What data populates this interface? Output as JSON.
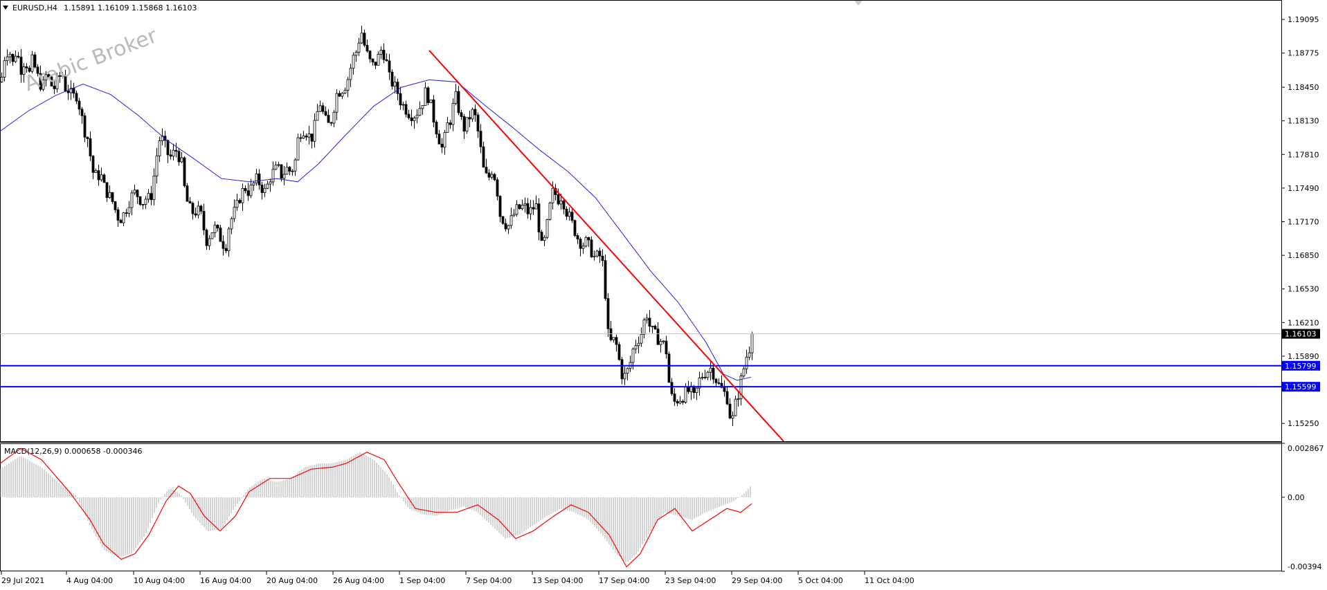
{
  "header": {
    "symbol": "EURUSD,H4",
    "ohlc": "1.15891 1.16109 1.15868 1.16103",
    "watermark": "Arabic Broker"
  },
  "colors": {
    "background": "#ffffff",
    "candles": "#000000",
    "moving_average": "#2020e0",
    "trendline": "#ff0000",
    "level_lines": "#0000ff",
    "price_tag_current_bg": "#000000",
    "price_tag_level_bg": "#0000ff",
    "macd_histogram": "#a8a8a8",
    "macd_signal": "#ff0000"
  },
  "chart_data": [
    {
      "type": "candlestick",
      "title": "EURUSD,H4",
      "ylim": [
        1.1508,
        1.1928
      ],
      "y_ticks": [
        "1.19095",
        "1.18775",
        "1.18450",
        "1.18130",
        "1.17810",
        "1.17490",
        "1.17170",
        "1.16850",
        "1.16530",
        "1.16210",
        "1.15890",
        "1.15250"
      ],
      "x_ticks": [
        "29 Jul 2021",
        "4 Aug 04:00",
        "10 Aug 04:00",
        "16 Aug 04:00",
        "20 Aug 04:00",
        "26 Aug 04:00",
        "1 Sep 04:00",
        "7 Sep 04:00",
        "13 Sep 04:00",
        "17 Sep 04:00",
        "23 Sep 04:00",
        "29 Sep 04:00",
        "5 Oct 04:00",
        "11 Oct 04:00"
      ],
      "close_path": [
        [
          0,
          1.185
        ],
        [
          6,
          1.1878
        ],
        [
          12,
          1.188
        ],
        [
          18,
          1.1865
        ],
        [
          22,
          1.1882
        ],
        [
          26,
          1.187
        ],
        [
          30,
          1.186
        ],
        [
          35,
          1.1875
        ],
        [
          40,
          1.1855
        ],
        [
          45,
          1.187
        ],
        [
          50,
          1.1862
        ],
        [
          55,
          1.185
        ],
        [
          60,
          1.1845
        ],
        [
          66,
          1.1858
        ],
        [
          72,
          1.1848
        ],
        [
          76,
          1.1843
        ],
        [
          82,
          1.1852
        ],
        [
          88,
          1.186
        ],
        [
          92,
          1.1845
        ],
        [
          98,
          1.1842
        ],
        [
          104,
          1.1835
        ],
        [
          108,
          1.184
        ],
        [
          114,
          1.1825
        ],
        [
          120,
          1.1805
        ],
        [
          126,
          1.1795
        ],
        [
          132,
          1.1765
        ],
        [
          138,
          1.176
        ],
        [
          144,
          1.1762
        ],
        [
          150,
          1.1748
        ],
        [
          156,
          1.1742
        ],
        [
          162,
          1.1735
        ],
        [
          168,
          1.1722
        ],
        [
          174,
          1.172
        ],
        [
          180,
          1.1728
        ],
        [
          186,
          1.1738
        ],
        [
          192,
          1.1745
        ],
        [
          198,
          1.1742
        ],
        [
          204,
          1.1735
        ],
        [
          210,
          1.174
        ],
        [
          216,
          1.1738
        ],
        [
          222,
          1.1765
        ],
        [
          228,
          1.1795
        ],
        [
          234,
          1.1795
        ],
        [
          240,
          1.1782
        ],
        [
          246,
          1.1778
        ],
        [
          252,
          1.1786
        ],
        [
          258,
          1.1778
        ],
        [
          262,
          1.177
        ],
        [
          266,
          1.1742
        ],
        [
          272,
          1.173
        ],
        [
          278,
          1.1725
        ],
        [
          284,
          1.1728
        ],
        [
          290,
          1.1722
        ],
        [
          296,
          1.1698
        ],
        [
          302,
          1.1705
        ],
        [
          308,
          1.1712
        ],
        [
          314,
          1.1705
        ],
        [
          320,
          1.1698
        ],
        [
          324,
          1.169
        ],
        [
          328,
          1.171
        ],
        [
          334,
          1.1722
        ],
        [
          340,
          1.173
        ],
        [
          346,
          1.1742
        ],
        [
          352,
          1.175
        ],
        [
          358,
          1.1745
        ],
        [
          364,
          1.1752
        ],
        [
          370,
          1.1758
        ],
        [
          376,
          1.175
        ],
        [
          382,
          1.1745
        ],
        [
          388,
          1.1758
        ],
        [
          394,
          1.1765
        ],
        [
          400,
          1.1768
        ],
        [
          406,
          1.176
        ],
        [
          412,
          1.1768
        ],
        [
          418,
          1.1765
        ],
        [
          424,
          1.177
        ],
        [
          430,
          1.18
        ],
        [
          436,
          1.1805
        ],
        [
          442,
          1.1802
        ],
        [
          448,
          1.1795
        ],
        [
          454,
          1.181
        ],
        [
          460,
          1.1832
        ],
        [
          466,
          1.1818
        ],
        [
          472,
          1.1808
        ],
        [
          478,
          1.1815
        ],
        [
          484,
          1.1838
        ],
        [
          490,
          1.1842
        ],
        [
          496,
          1.1845
        ],
        [
          502,
          1.1855
        ],
        [
          508,
          1.1872
        ],
        [
          514,
          1.188
        ],
        [
          520,
          1.19
        ],
        [
          526,
          1.1882
        ],
        [
          532,
          1.187
        ],
        [
          538,
          1.1865
        ],
        [
          544,
          1.1872
        ],
        [
          550,
          1.1882
        ],
        [
          556,
          1.1872
        ],
        [
          560,
          1.1855
        ],
        [
          566,
          1.1848
        ],
        [
          572,
          1.1842
        ],
        [
          578,
          1.183
        ],
        [
          584,
          1.1825
        ],
        [
          590,
          1.182
        ],
        [
          596,
          1.1818
        ],
        [
          602,
          1.1822
        ],
        [
          608,
          1.183
        ],
        [
          614,
          1.1842
        ],
        [
          620,
          1.183
        ],
        [
          626,
          1.1812
        ],
        [
          632,
          1.1798
        ],
        [
          638,
          1.1785
        ],
        [
          644,
          1.1808
        ],
        [
          650,
          1.1815
        ],
        [
          656,
          1.1838
        ],
        [
          662,
          1.1822
        ],
        [
          668,
          1.1805
        ],
        [
          674,
          1.1812
        ],
        [
          680,
          1.1822
        ],
        [
          686,
          1.1815
        ],
        [
          692,
          1.179
        ],
        [
          698,
          1.1762
        ],
        [
          704,
          1.1758
        ],
        [
          710,
          1.1768
        ],
        [
          716,
          1.1752
        ],
        [
          720,
          1.1725
        ],
        [
          726,
          1.1718
        ],
        [
          732,
          1.1712
        ],
        [
          738,
          1.172
        ],
        [
          744,
          1.1728
        ],
        [
          750,
          1.173
        ],
        [
          756,
          1.1732
        ],
        [
          762,
          1.1725
        ],
        [
          768,
          1.173
        ],
        [
          774,
          1.1732
        ],
        [
          780,
          1.1692
        ],
        [
          786,
          1.17
        ],
        [
          792,
          1.1728
        ],
        [
          798,
          1.1748
        ],
        [
          804,
          1.1738
        ],
        [
          810,
          1.1742
        ],
        [
          816,
          1.1728
        ],
        [
          822,
          1.172
        ],
        [
          828,
          1.171
        ],
        [
          834,
          1.17
        ],
        [
          840,
          1.1695
        ],
        [
          846,
          1.1698
        ],
        [
          852,
          1.169
        ],
        [
          858,
          1.1682
        ],
        [
          864,
          1.1686
        ],
        [
          870,
          1.1675
        ],
        [
          874,
          1.164
        ],
        [
          878,
          1.16
        ],
        [
          884,
          1.1605
        ],
        [
          890,
          1.1598
        ],
        [
          896,
          1.1572
        ],
        [
          902,
          1.157
        ],
        [
          908,
          1.158
        ],
        [
          914,
          1.1598
        ],
        [
          920,
          1.1605
        ],
        [
          926,
          1.1612
        ],
        [
          932,
          1.1632
        ],
        [
          938,
          1.1615
        ],
        [
          944,
          1.161
        ],
        [
          950,
          1.1605
        ],
        [
          956,
          1.1602
        ],
        [
          962,
          1.1592
        ],
        [
          966,
          1.1555
        ],
        [
          972,
          1.1545
        ],
        [
          978,
          1.1548
        ],
        [
          984,
          1.155
        ],
        [
          990,
          1.1555
        ],
        [
          996,
          1.1556
        ],
        [
          1002,
          1.1548
        ],
        [
          1008,
          1.1565
        ],
        [
          1014,
          1.1572
        ],
        [
          1020,
          1.1575
        ],
        [
          1026,
          1.1578
        ],
        [
          1032,
          1.1568
        ],
        [
          1038,
          1.156
        ],
        [
          1044,
          1.1555
        ],
        [
          1050,
          1.1548
        ],
        [
          1054,
          1.1528
        ],
        [
          1058,
          1.153
        ],
        [
          1062,
          1.1548
        ],
        [
          1066,
          1.1555
        ],
        [
          1070,
          1.157
        ],
        [
          1074,
          1.158
        ],
        [
          1078,
          1.1592
        ],
        [
          1082,
          1.1598
        ],
        [
          1086,
          1.16103
        ]
      ],
      "moving_average": [
        [
          0,
          1.1803
        ],
        [
          40,
          1.1822
        ],
        [
          80,
          1.1837
        ],
        [
          120,
          1.1848
        ],
        [
          160,
          1.1838
        ],
        [
          200,
          1.1818
        ],
        [
          240,
          1.1795
        ],
        [
          280,
          1.1777
        ],
        [
          320,
          1.1758
        ],
        [
          360,
          1.1755
        ],
        [
          400,
          1.1758
        ],
        [
          430,
          1.1755
        ],
        [
          460,
          1.1772
        ],
        [
          500,
          1.18
        ],
        [
          540,
          1.1827
        ],
        [
          580,
          1.1845
        ],
        [
          620,
          1.1852
        ],
        [
          660,
          1.185
        ],
        [
          700,
          1.1828
        ],
        [
          740,
          1.1807
        ],
        [
          780,
          1.1785
        ],
        [
          820,
          1.1765
        ],
        [
          860,
          1.174
        ],
        [
          900,
          1.1705
        ],
        [
          940,
          1.167
        ],
        [
          980,
          1.164
        ],
        [
          1020,
          1.1602
        ],
        [
          1045,
          1.1572
        ],
        [
          1065,
          1.1566
        ],
        [
          1085,
          1.1569
        ]
      ],
      "trendline": {
        "from": [
          620,
          1.188
        ],
        "to": [
          1132,
          1.1508
        ]
      },
      "horizontal_levels": [
        1.15799,
        1.15599
      ],
      "current_price": 1.16103,
      "price_tags": [
        "1.16103",
        "1.15799",
        "1.15599"
      ]
    },
    {
      "type": "histogram+line",
      "title": "MACD(12,26,9) 0.000658 -0.000346",
      "ylim": [
        -0.00394,
        0.002867
      ],
      "y_ticks": [
        "0.002867",
        "0.00",
        "-0.00394"
      ],
      "histogram": [
        [
          0,
          0.0015
        ],
        [
          30,
          0.0022
        ],
        [
          60,
          0.0016
        ],
        [
          90,
          0.0006
        ],
        [
          110,
          0.0001
        ],
        [
          130,
          -0.0015
        ],
        [
          150,
          -0.0028
        ],
        [
          170,
          -0.0032
        ],
        [
          190,
          -0.003
        ],
        [
          210,
          -0.002
        ],
        [
          230,
          -0.0002
        ],
        [
          245,
          0.0005
        ],
        [
          260,
          0.0002
        ],
        [
          280,
          -0.001
        ],
        [
          300,
          -0.0018
        ],
        [
          320,
          -0.0017
        ],
        [
          340,
          -0.0005
        ],
        [
          360,
          0.0005
        ],
        [
          380,
          0.001
        ],
        [
          400,
          0.0008
        ],
        [
          420,
          0.001
        ],
        [
          440,
          0.0016
        ],
        [
          460,
          0.0018
        ],
        [
          480,
          0.0018
        ],
        [
          500,
          0.002
        ],
        [
          520,
          0.0024
        ],
        [
          540,
          0.002
        ],
        [
          560,
          0.0012
        ],
        [
          575,
          0.0002
        ],
        [
          590,
          -0.0006
        ],
        [
          610,
          -0.0009
        ],
        [
          630,
          -0.001
        ],
        [
          650,
          -0.0007
        ],
        [
          670,
          -0.0005
        ],
        [
          690,
          -0.0008
        ],
        [
          710,
          -0.0015
        ],
        [
          730,
          -0.0022
        ],
        [
          750,
          -0.002
        ],
        [
          770,
          -0.0015
        ],
        [
          790,
          -0.001
        ],
        [
          810,
          -0.0006
        ],
        [
          830,
          -0.0008
        ],
        [
          850,
          -0.0012
        ],
        [
          870,
          -0.002
        ],
        [
          890,
          -0.003
        ],
        [
          905,
          -0.0035
        ],
        [
          920,
          -0.003
        ],
        [
          940,
          -0.0018
        ],
        [
          960,
          -0.0008
        ],
        [
          980,
          -0.001
        ],
        [
          1000,
          -0.0012
        ],
        [
          1020,
          -0.0008
        ],
        [
          1040,
          -0.0005
        ],
        [
          1060,
          -0.0002
        ],
        [
          1075,
          0.0002
        ],
        [
          1086,
          0.000658
        ]
      ],
      "signal": [
        [
          0,
          0.0018
        ],
        [
          30,
          0.0026
        ],
        [
          60,
          0.002
        ],
        [
          100,
          0.0003
        ],
        [
          130,
          -0.0012
        ],
        [
          150,
          -0.0025
        ],
        [
          175,
          -0.0033
        ],
        [
          195,
          -0.003
        ],
        [
          215,
          -0.002
        ],
        [
          240,
          -0.0002
        ],
        [
          258,
          0.0006
        ],
        [
          275,
          0.0002
        ],
        [
          295,
          -0.001
        ],
        [
          318,
          -0.0018
        ],
        [
          340,
          -0.001
        ],
        [
          360,
          0.0003
        ],
        [
          390,
          0.001
        ],
        [
          420,
          0.001
        ],
        [
          450,
          0.0015
        ],
        [
          480,
          0.0016
        ],
        [
          500,
          0.0018
        ],
        [
          530,
          0.0024
        ],
        [
          555,
          0.002
        ],
        [
          575,
          0.0008
        ],
        [
          600,
          -0.0006
        ],
        [
          630,
          -0.0008
        ],
        [
          660,
          -0.0008
        ],
        [
          690,
          -0.0004
        ],
        [
          720,
          -0.0012
        ],
        [
          745,
          -0.0022
        ],
        [
          770,
          -0.0018
        ],
        [
          800,
          -0.001
        ],
        [
          825,
          -0.0004
        ],
        [
          850,
          -0.0008
        ],
        [
          880,
          -0.002
        ],
        [
          905,
          -0.0037
        ],
        [
          925,
          -0.003
        ],
        [
          950,
          -0.0012
        ],
        [
          975,
          -0.0006
        ],
        [
          1000,
          -0.0018
        ],
        [
          1025,
          -0.0012
        ],
        [
          1050,
          -0.0006
        ],
        [
          1070,
          -0.0008
        ],
        [
          1086,
          -0.000346
        ]
      ]
    }
  ]
}
